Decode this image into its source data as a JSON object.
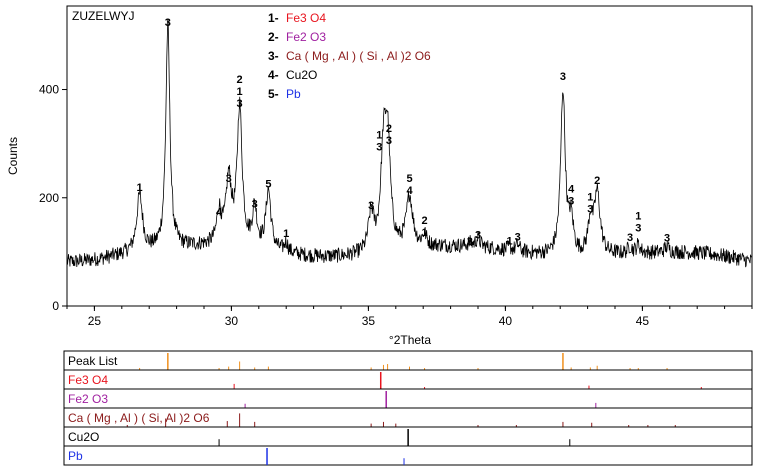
{
  "chart_data": {
    "type": "line",
    "sample_name": "ZUZELWYJ",
    "xlabel": "°2Theta",
    "ylabel": "Counts",
    "xlim": [
      24,
      49
    ],
    "ylim": [
      0,
      510
    ],
    "x_ticks": [
      25,
      30,
      35,
      40,
      45
    ],
    "y_ticks": [
      0,
      200,
      400
    ],
    "grid": false,
    "baseline": 100,
    "peaks": [
      {
        "x": 26.65,
        "y": 205,
        "w": 0.13
      },
      {
        "x": 27.68,
        "y": 510,
        "w": 0.09
      },
      {
        "x": 29.55,
        "y": 160,
        "w": 0.1
      },
      {
        "x": 29.9,
        "y": 220,
        "w": 0.12
      },
      {
        "x": 30.3,
        "y": 355,
        "w": 0.11
      },
      {
        "x": 30.85,
        "y": 172,
        "w": 0.1
      },
      {
        "x": 31.35,
        "y": 210,
        "w": 0.11
      },
      {
        "x": 32.0,
        "y": 118,
        "w": 0.08
      },
      {
        "x": 35.1,
        "y": 170,
        "w": 0.12
      },
      {
        "x": 35.55,
        "y": 265,
        "w": 0.12
      },
      {
        "x": 35.7,
        "y": 290,
        "w": 0.12
      },
      {
        "x": 36.5,
        "y": 195,
        "w": 0.14
      },
      {
        "x": 37.05,
        "y": 120,
        "w": 0.1
      },
      {
        "x": 38.7,
        "y": 105,
        "w": 0.1
      },
      {
        "x": 39.0,
        "y": 115,
        "w": 0.1
      },
      {
        "x": 40.15,
        "y": 105,
        "w": 0.08
      },
      {
        "x": 40.45,
        "y": 112,
        "w": 0.08
      },
      {
        "x": 42.1,
        "y": 405,
        "w": 0.1
      },
      {
        "x": 42.4,
        "y": 160,
        "w": 0.1
      },
      {
        "x": 43.1,
        "y": 160,
        "w": 0.1
      },
      {
        "x": 43.35,
        "y": 215,
        "w": 0.13
      },
      {
        "x": 44.55,
        "y": 112,
        "w": 0.09
      },
      {
        "x": 44.85,
        "y": 115,
        "w": 0.09
      },
      {
        "x": 45.9,
        "y": 110,
        "w": 0.1
      }
    ],
    "peak_labels": [
      {
        "x": 26.65,
        "y": 205,
        "lines": [
          "1"
        ]
      },
      {
        "x": 27.68,
        "y": 510,
        "lines": [
          "3"
        ]
      },
      {
        "x": 29.55,
        "y": 160,
        "lines": [
          "4"
        ]
      },
      {
        "x": 29.9,
        "y": 222,
        "lines": [
          "3"
        ]
      },
      {
        "x": 30.3,
        "y": 360,
        "lines": [
          "2",
          "1",
          "3"
        ]
      },
      {
        "x": 30.85,
        "y": 175,
        "lines": [
          "3"
        ]
      },
      {
        "x": 31.35,
        "y": 212,
        "lines": [
          "5"
        ]
      },
      {
        "x": 32.0,
        "y": 120,
        "lines": [
          "1"
        ]
      },
      {
        "x": 35.1,
        "y": 172,
        "lines": [
          "3"
        ]
      },
      {
        "x": 35.4,
        "y": 280,
        "lines": [
          "1",
          "3"
        ]
      },
      {
        "x": 35.75,
        "y": 292,
        "lines": [
          "2",
          "3"
        ]
      },
      {
        "x": 36.5,
        "y": 200,
        "lines": [
          "5",
          "4"
        ]
      },
      {
        "x": 37.05,
        "y": 122,
        "lines": [
          "2",
          "1"
        ]
      },
      {
        "x": 38.7,
        "y": 105,
        "lines": [
          "3"
        ]
      },
      {
        "x": 39.0,
        "y": 117,
        "lines": [
          "3"
        ]
      },
      {
        "x": 40.15,
        "y": 106,
        "lines": [
          "1"
        ]
      },
      {
        "x": 40.45,
        "y": 114,
        "lines": [
          "3"
        ]
      },
      {
        "x": 42.1,
        "y": 410,
        "lines": [
          "3"
        ]
      },
      {
        "x": 42.4,
        "y": 180,
        "lines": [
          "4",
          "3"
        ]
      },
      {
        "x": 43.1,
        "y": 165,
        "lines": [
          "1",
          "3"
        ]
      },
      {
        "x": 43.35,
        "y": 218,
        "lines": [
          "2"
        ]
      },
      {
        "x": 44.55,
        "y": 113,
        "lines": [
          "3"
        ]
      },
      {
        "x": 44.85,
        "y": 130,
        "lines": [
          "1",
          "3"
        ]
      },
      {
        "x": 45.9,
        "y": 112,
        "lines": [
          "3"
        ]
      }
    ],
    "legend": [
      {
        "num": "1-",
        "label": "Fe3 O4",
        "color": "#e8141e"
      },
      {
        "num": "2-",
        "label": "Fe2 O3",
        "color": "#a020a0"
      },
      {
        "num": "3-",
        "label": "Ca ( Mg , Al ) ( Si , Al )2 O6",
        "color": "#8b1a1a"
      },
      {
        "num": "4-",
        "label": "Cu2O",
        "color": "#000000"
      },
      {
        "num": "5-",
        "label": "Pb",
        "color": "#1e32e6"
      }
    ],
    "stick_rows": [
      {
        "label": "Peak List",
        "color": "#000000",
        "stick_color": "#f0901e",
        "sticks": [
          [
            26.65,
            0.12
          ],
          [
            27.68,
            1.0
          ],
          [
            29.55,
            0.1
          ],
          [
            29.9,
            0.2
          ],
          [
            30.3,
            0.5
          ],
          [
            30.85,
            0.15
          ],
          [
            31.35,
            0.2
          ],
          [
            35.1,
            0.15
          ],
          [
            35.55,
            0.3
          ],
          [
            35.7,
            0.35
          ],
          [
            36.5,
            0.2
          ],
          [
            37.05,
            0.08
          ],
          [
            39.0,
            0.08
          ],
          [
            42.1,
            1.0
          ],
          [
            42.4,
            0.15
          ],
          [
            43.1,
            0.15
          ],
          [
            43.35,
            0.25
          ],
          [
            44.55,
            0.08
          ],
          [
            44.85,
            0.08
          ],
          [
            45.9,
            0.08
          ]
        ]
      },
      {
        "label": "Fe3 O4",
        "color": "#e8141e",
        "stick_color": "#e8141e",
        "sticks": [
          [
            30.1,
            0.3
          ],
          [
            35.45,
            1.0
          ],
          [
            37.05,
            0.08
          ],
          [
            43.05,
            0.2
          ],
          [
            47.15,
            0.1
          ]
        ]
      },
      {
        "label": "Fe2 O3",
        "color": "#a020a0",
        "stick_color": "#a020a0",
        "sticks": [
          [
            30.5,
            0.25
          ],
          [
            35.65,
            1.0
          ],
          [
            43.3,
            0.3
          ]
        ]
      },
      {
        "label": "Ca ( Mg , Al ) ( Si, Al )2 O6",
        "color": "#8b1a1a",
        "stick_color": "#8b1a1a",
        "sticks": [
          [
            26.2,
            0.1
          ],
          [
            27.6,
            0.5
          ],
          [
            29.85,
            0.35
          ],
          [
            30.3,
            0.8
          ],
          [
            30.85,
            0.3
          ],
          [
            35.1,
            0.2
          ],
          [
            35.55,
            0.3
          ],
          [
            36.0,
            0.2
          ],
          [
            39.0,
            0.1
          ],
          [
            40.4,
            0.1
          ],
          [
            42.1,
            0.3
          ],
          [
            43.15,
            0.25
          ],
          [
            44.5,
            0.1
          ],
          [
            45.2,
            0.1
          ],
          [
            46.2,
            0.1
          ]
        ]
      },
      {
        "label": "Cu2O",
        "color": "#000000",
        "stick_color": "#000000",
        "sticks": [
          [
            29.55,
            0.4
          ],
          [
            36.45,
            1.0
          ],
          [
            42.35,
            0.4
          ]
        ]
      },
      {
        "label": "Pb",
        "color": "#1e32e6",
        "stick_color": "#1e32e6",
        "sticks": [
          [
            31.3,
            1.0
          ],
          [
            36.3,
            0.4
          ]
        ]
      }
    ]
  }
}
